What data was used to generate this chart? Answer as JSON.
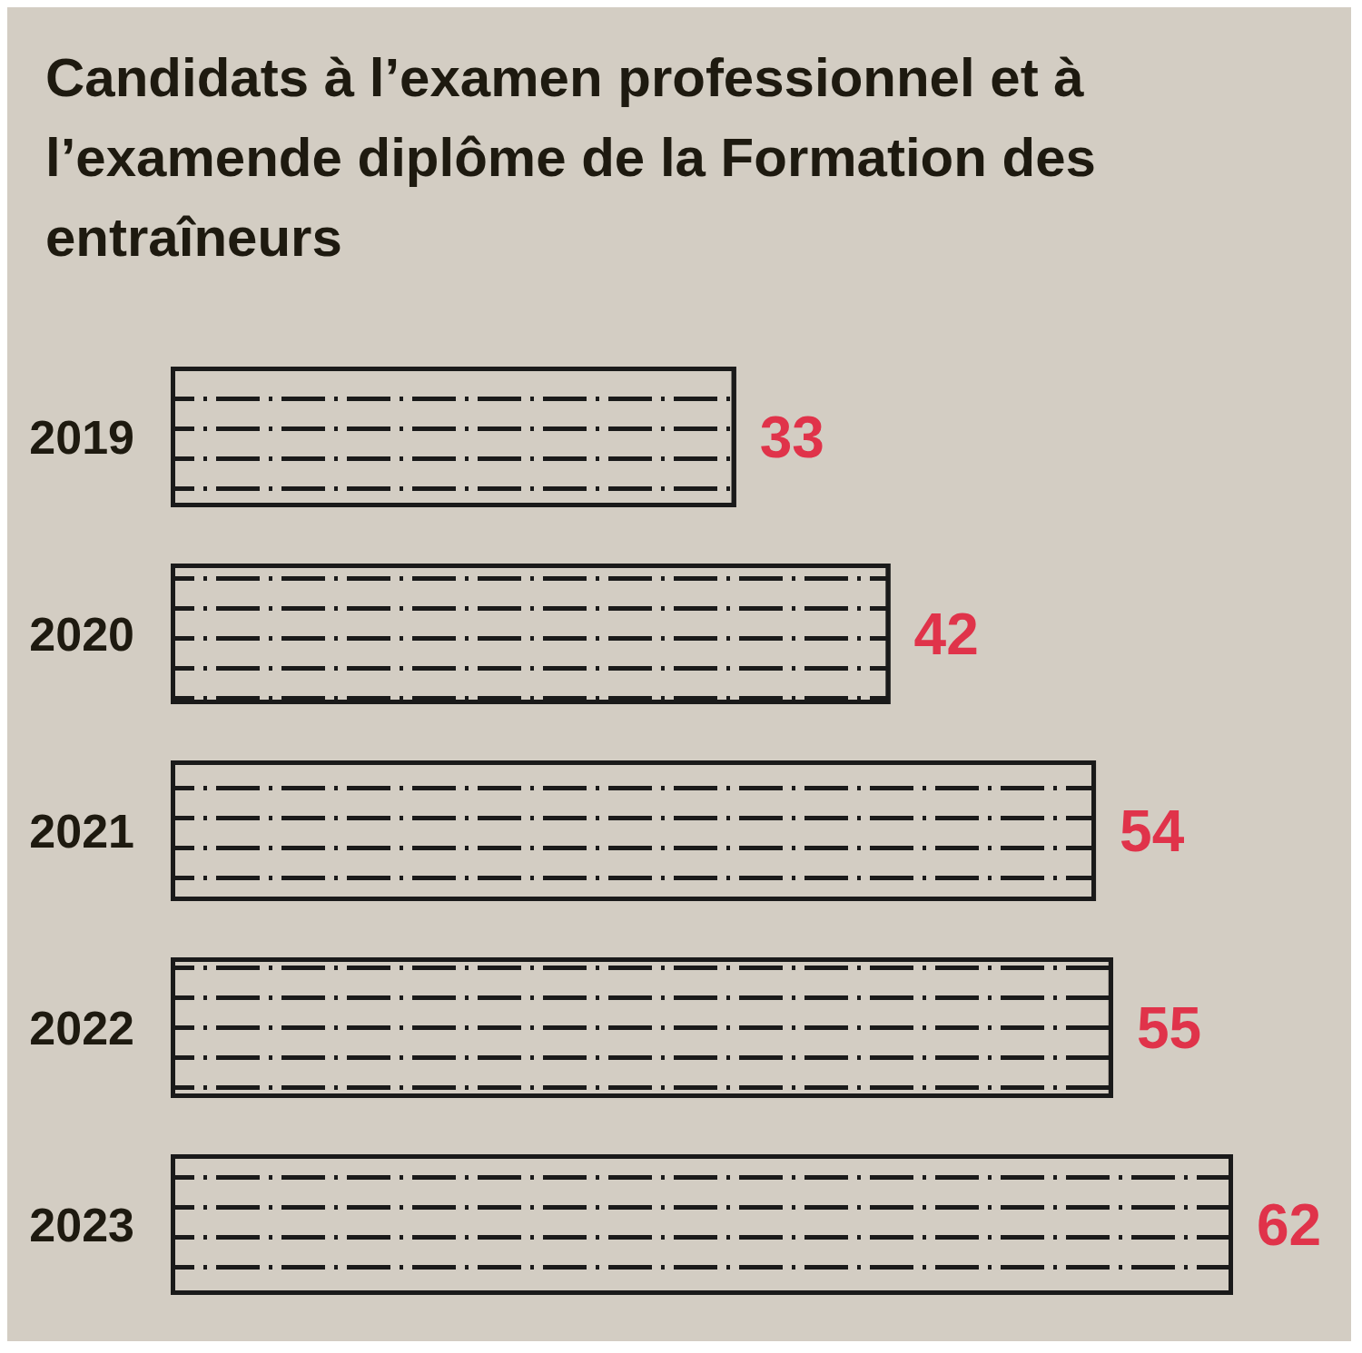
{
  "chart_data": {
    "type": "bar",
    "orientation": "horizontal",
    "title": "Candidats à l’examen professionnel et à l’examende diplôme de la Formation des entraîneurs",
    "categories": [
      "2019",
      "2020",
      "2021",
      "2022",
      "2023"
    ],
    "values": [
      33,
      42,
      54,
      55,
      62
    ],
    "color": "#1a1a1a",
    "data_labels": true
  }
}
